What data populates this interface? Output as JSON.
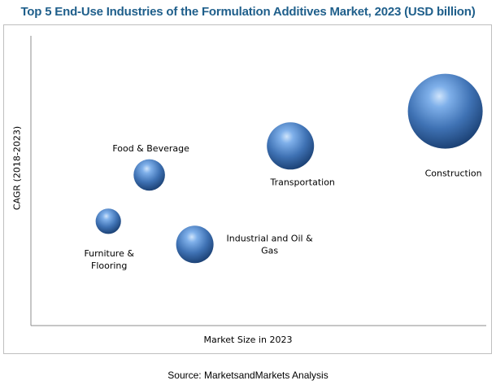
{
  "chart_data": {
    "type": "scatter",
    "title": "Top 5 End-Use Industries of the Formulation Additives Market, 2023 (USD billion)",
    "xlabel": "Market Size in 2023",
    "ylabel": "CAGR (2018-2023)",
    "grid": false,
    "legend": "none",
    "bubble_color": "#3f72b4",
    "points": [
      {
        "label": [
          "Construction"
        ],
        "x": 0.91,
        "y": 0.74,
        "size": 1.0
      },
      {
        "label": [
          "Transportation"
        ],
        "x": 0.57,
        "y": 0.62,
        "size": 0.63
      },
      {
        "label": [
          "Food & Beverage"
        ],
        "x": 0.26,
        "y": 0.52,
        "size": 0.42
      },
      {
        "label": [
          "Furniture &",
          "Flooring"
        ],
        "x": 0.17,
        "y": 0.36,
        "size": 0.34
      },
      {
        "label": [
          "Industrial and Oil &",
          "Gas"
        ],
        "x": 0.36,
        "y": 0.28,
        "size": 0.5
      }
    ]
  },
  "source": "Source: MarketsandMarkets Analysis"
}
